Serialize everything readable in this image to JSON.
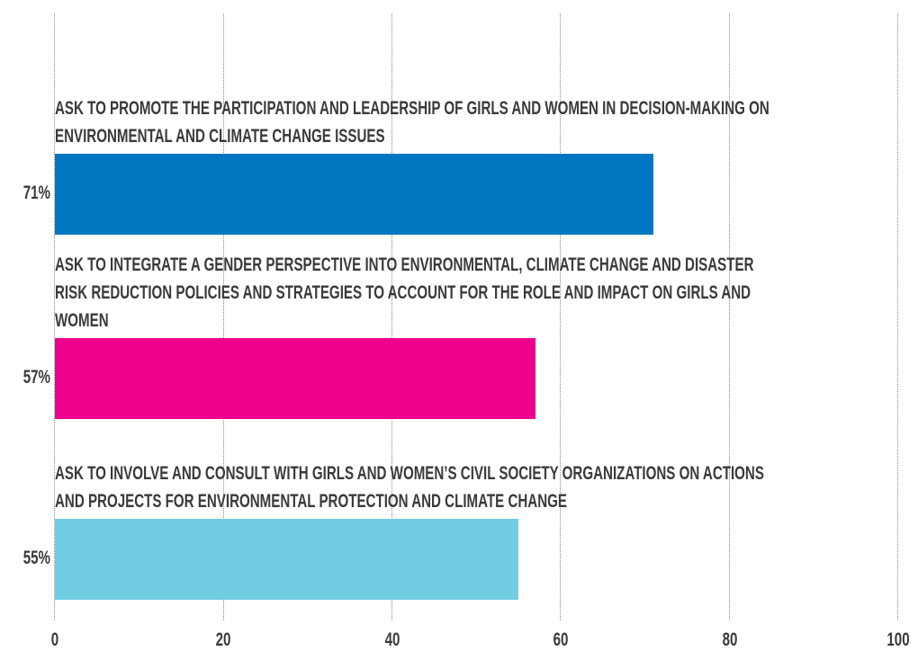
{
  "chart_data": {
    "type": "bar",
    "orientation": "horizontal",
    "categories": [
      "ASK TO PROMOTE THE PARTICIPATION AND LEADERSHIP OF GIRLS AND WOMEN IN DECISION-MAKING ON ENVIRONMENTAL AND CLIMATE CHANGE ISSUES",
      "ASK TO INTEGRATE A GENDER PERSPECTIVE INTO ENVIRONMENTAL, CLIMATE CHANGE AND DISASTER RISK REDUCTION POLICIES AND STRATEGIES TO ACCOUNT FOR THE ROLE AND IMPACT ON GIRLS AND WOMEN",
      "ASK TO INVOLVE AND CONSULT WITH GIRLS AND WOMEN’S CIVIL SOCIETY ORGANIZATIONS ON ACTIONS AND PROJECTS FOR ENVIRONMENTAL PROTECTION AND CLIMATE CHANGE"
    ],
    "values": [
      71,
      57,
      55
    ],
    "value_labels": [
      "71%",
      "57%",
      "55%"
    ],
    "colors": [
      "#0077c0",
      "#ec008c",
      "#72cde3"
    ],
    "xlim": [
      0,
      100
    ],
    "xticks": [
      0,
      20,
      40,
      60,
      80,
      100
    ],
    "grid": true
  }
}
